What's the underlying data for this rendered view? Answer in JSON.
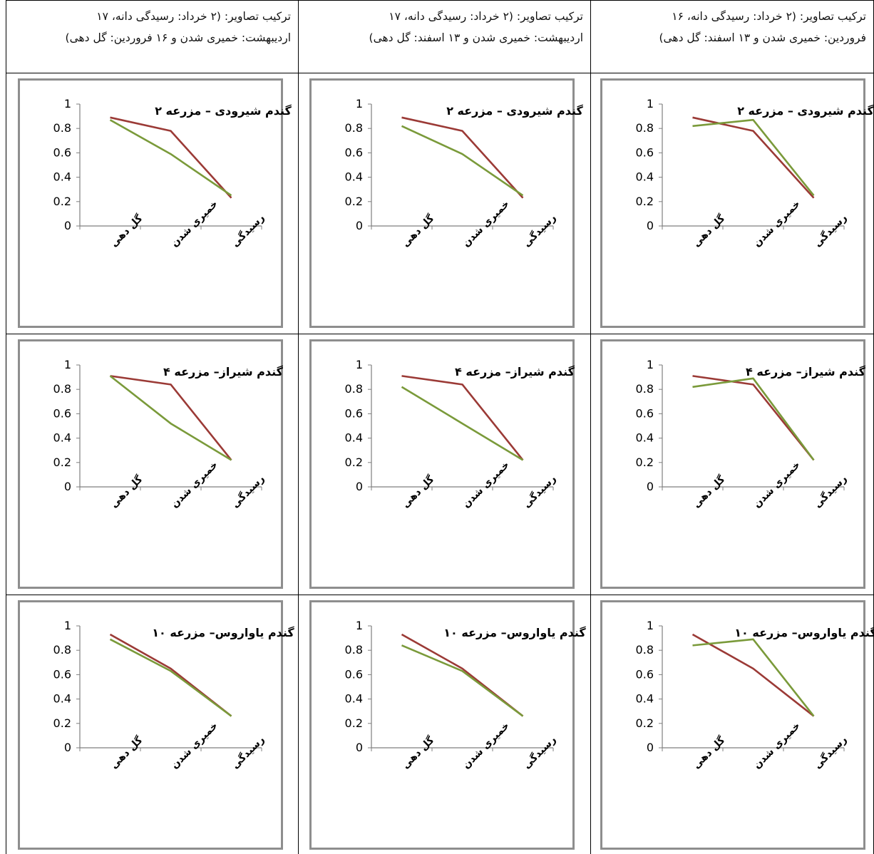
{
  "headers": [
    {
      "line1": "ترکیب تصاویر: (۲ خرداد: رسیدگی دانه، ۱۷",
      "line2": "اردیبهشت: خمیری شدن و ۱۶ فروردین: گل دهی)"
    },
    {
      "line1": "ترکیب تصاویر: (۲ خرداد: رسیدگی دانه، ۱۷",
      "line2": "اردیبهشت: خمیری شدن و ۱۳ اسفند: گل دهی)"
    },
    {
      "line1": "ترکیب تصاویر: (۲ خرداد: رسیدگی دانه، ۱۶",
      "line2": "فروردین: خمیری شدن و ۱۳ اسفند: گل دهی)"
    }
  ],
  "colors": {
    "red": "#9b3a36",
    "green": "#7a9a3a",
    "border": "#8e8e8e"
  },
  "chart_data": [
    {
      "type": "line",
      "title": "گندم شیرودی – مزرعه ۲",
      "categories": [
        "گل دهی",
        "خمیری شدن",
        "رسیدگی"
      ],
      "ylim": [
        0,
        1
      ],
      "yticks": [
        "0",
        "0.2",
        "0.4",
        "0.6",
        "0.8",
        "1"
      ],
      "series": [
        {
          "color": "#9b3a36",
          "values": [
            0.89,
            0.78,
            0.23
          ]
        },
        {
          "color": "#7a9a3a",
          "values": [
            0.87,
            0.59,
            0.25
          ]
        }
      ]
    },
    {
      "type": "line",
      "title": "گندم شیرودی – مزرعه ۲",
      "categories": [
        "گل دهی",
        "خمیری شدن",
        "رسیدگی"
      ],
      "ylim": [
        0,
        1
      ],
      "yticks": [
        "0",
        "0.2",
        "0.4",
        "0.6",
        "0.8",
        "1"
      ],
      "series": [
        {
          "color": "#9b3a36",
          "values": [
            0.89,
            0.78,
            0.23
          ]
        },
        {
          "color": "#7a9a3a",
          "values": [
            0.82,
            0.59,
            0.25
          ]
        }
      ]
    },
    {
      "type": "line",
      "title": "گندم شیرودی – مزرعه ۲",
      "categories": [
        "گل دهی",
        "خمیری شدن",
        "رسیدگی"
      ],
      "ylim": [
        0,
        1
      ],
      "yticks": [
        "0",
        "0.2",
        "0.4",
        "0.6",
        "0.8",
        "1"
      ],
      "series": [
        {
          "color": "#9b3a36",
          "values": [
            0.89,
            0.78,
            0.23
          ]
        },
        {
          "color": "#7a9a3a",
          "values": [
            0.82,
            0.87,
            0.25
          ]
        }
      ]
    },
    {
      "type": "line",
      "title": "گندم شیراز– مزرعه ۴",
      "categories": [
        "گل دهی",
        "خمیری شدن",
        "رسیدگی"
      ],
      "ylim": [
        0,
        1
      ],
      "yticks": [
        "0",
        "0.2",
        "0.4",
        "0.6",
        "0.8",
        "1"
      ],
      "series": [
        {
          "color": "#9b3a36",
          "values": [
            0.91,
            0.84,
            0.22
          ]
        },
        {
          "color": "#7a9a3a",
          "values": [
            0.91,
            0.52,
            0.22
          ]
        }
      ]
    },
    {
      "type": "line",
      "title": "گندم شیراز– مزرعه ۴",
      "categories": [
        "گل دهی",
        "خمیری شدن",
        "رسیدگی"
      ],
      "ylim": [
        0,
        1
      ],
      "yticks": [
        "0",
        "0.2",
        "0.4",
        "0.6",
        "0.8",
        "1"
      ],
      "series": [
        {
          "color": "#9b3a36",
          "values": [
            0.91,
            0.84,
            0.22
          ]
        },
        {
          "color": "#7a9a3a",
          "values": [
            0.82,
            0.52,
            0.22
          ]
        }
      ]
    },
    {
      "type": "line",
      "title": "گندم شیراز– مزرعه ۴",
      "categories": [
        "گل دهی",
        "خمیری شدن",
        "رسیدگی"
      ],
      "ylim": [
        0,
        1
      ],
      "yticks": [
        "0",
        "0.2",
        "0.4",
        "0.6",
        "0.8",
        "1"
      ],
      "series": [
        {
          "color": "#9b3a36",
          "values": [
            0.91,
            0.84,
            0.22
          ]
        },
        {
          "color": "#7a9a3a",
          "values": [
            0.82,
            0.89,
            0.22
          ]
        }
      ]
    },
    {
      "type": "line",
      "title": "گندم یاواروس– مزرعه ۱۰",
      "categories": [
        "گل دهی",
        "خمیری شدن",
        "رسیدگی"
      ],
      "ylim": [
        0,
        1
      ],
      "yticks": [
        "0",
        "0.2",
        "0.4",
        "0.6",
        "0.8",
        "1"
      ],
      "series": [
        {
          "color": "#9b3a36",
          "values": [
            0.93,
            0.65,
            0.26
          ]
        },
        {
          "color": "#7a9a3a",
          "values": [
            0.89,
            0.63,
            0.26
          ]
        }
      ]
    },
    {
      "type": "line",
      "title": "گندم یاواروس– مزرعه ۱۰",
      "categories": [
        "گل دهی",
        "خمیری شدن",
        "رسیدگی"
      ],
      "ylim": [
        0,
        1
      ],
      "yticks": [
        "0",
        "0.2",
        "0.4",
        "0.6",
        "0.8",
        "1"
      ],
      "series": [
        {
          "color": "#9b3a36",
          "values": [
            0.93,
            0.65,
            0.26
          ]
        },
        {
          "color": "#7a9a3a",
          "values": [
            0.84,
            0.63,
            0.26
          ]
        }
      ]
    },
    {
      "type": "line",
      "title": "گندم یاواروس– مزرعه ۱۰",
      "categories": [
        "گل دهی",
        "خمیری شدن",
        "رسیدگی"
      ],
      "ylim": [
        0,
        1
      ],
      "yticks": [
        "0",
        "0.2",
        "0.4",
        "0.6",
        "0.8",
        "1"
      ],
      "series": [
        {
          "color": "#9b3a36",
          "values": [
            0.93,
            0.65,
            0.26
          ]
        },
        {
          "color": "#7a9a3a",
          "values": [
            0.84,
            0.89,
            0.26
          ]
        }
      ]
    }
  ]
}
